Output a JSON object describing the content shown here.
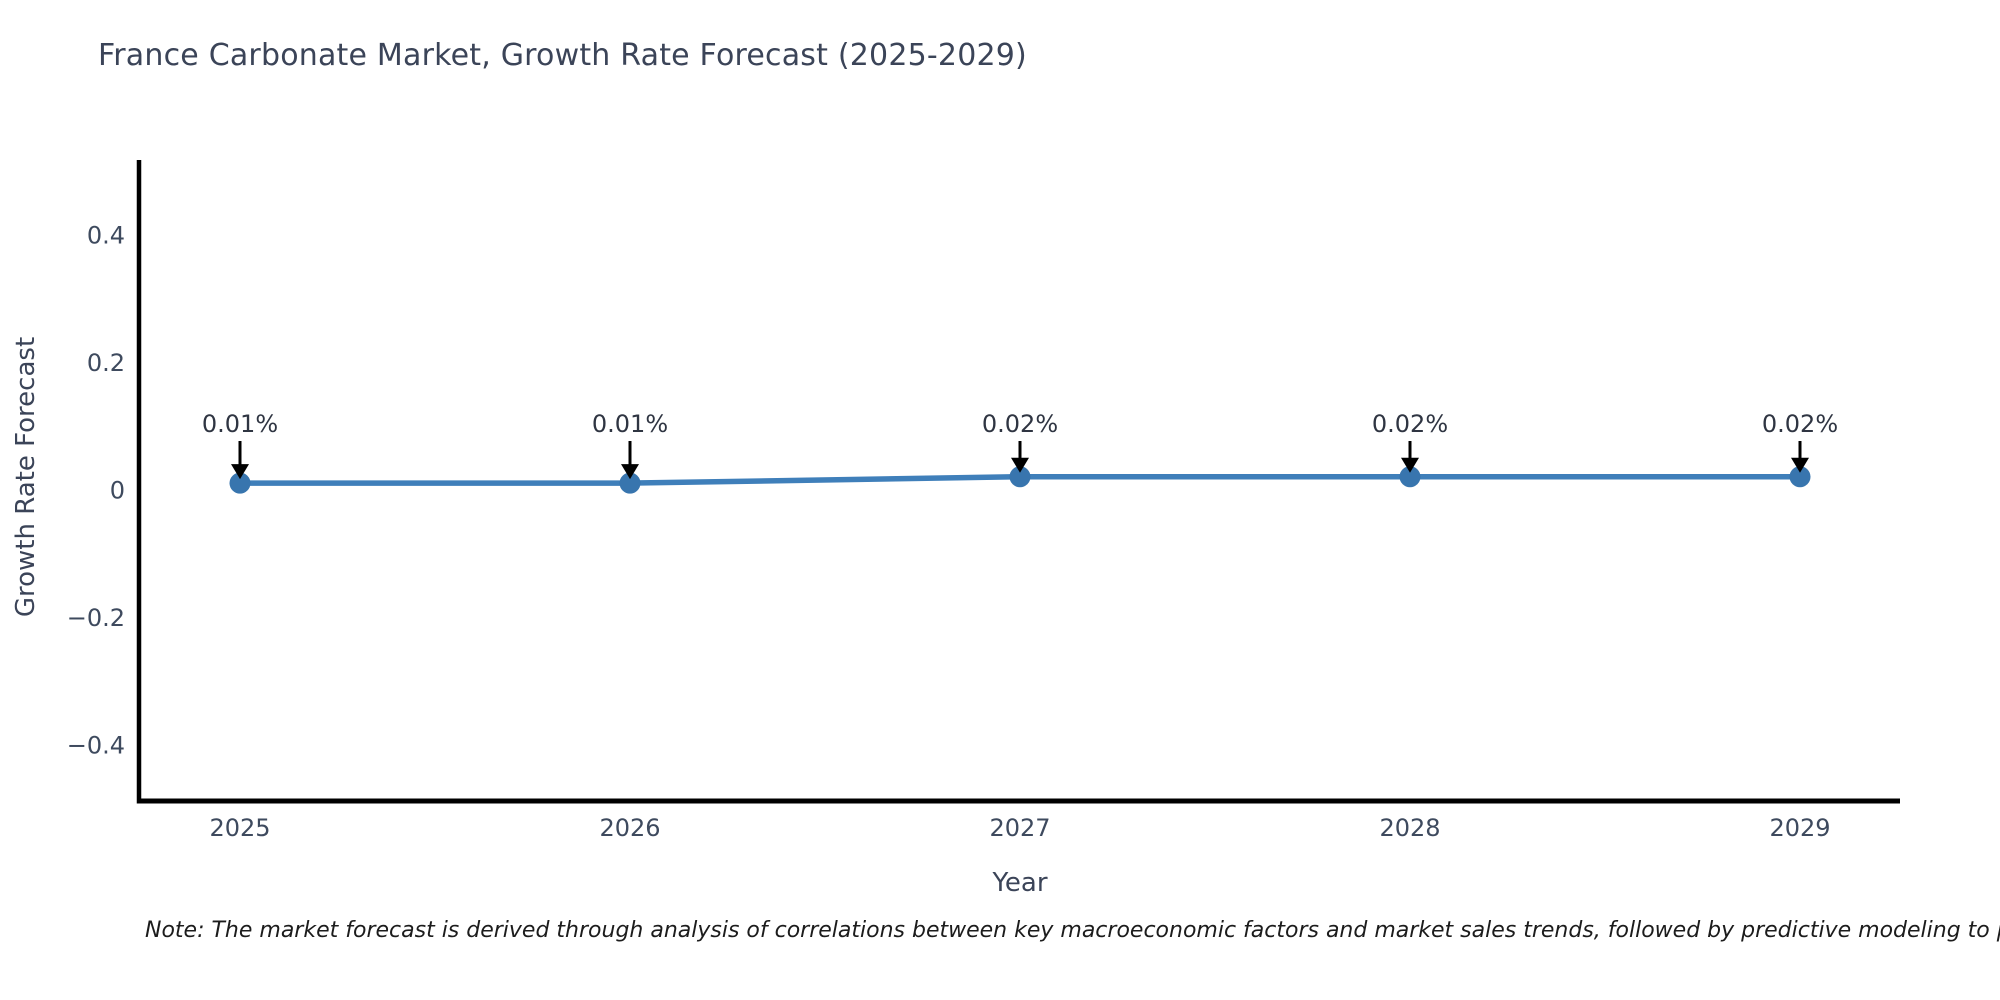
{
  "title": "France Carbonate Market, Growth Rate Forecast (2025-2029)",
  "note": "Note: The market forecast is derived through analysis of correlations between key macroeconomic factors and market sales trends, followed by predictive modeling to project future sal",
  "chart_data": {
    "type": "line",
    "title": "France Carbonate Market, Growth Rate Forecast (2025-2029)",
    "xlabel": "Year",
    "ylabel": "Growth Rate Forecast",
    "x": [
      2025,
      2026,
      2027,
      2028,
      2029
    ],
    "x_tick_labels": [
      "2025",
      "2026",
      "2027",
      "2028",
      "2029"
    ],
    "values": [
      0.01,
      0.01,
      0.02,
      0.02,
      0.02
    ],
    "point_labels": [
      "0.01%",
      "0.01%",
      "0.02%",
      "0.02%",
      "0.02%"
    ],
    "yticks": [
      0.4,
      0.2,
      0,
      -0.2,
      -0.4
    ],
    "ytick_labels": [
      "0.4",
      "0.2",
      "0",
      "−0.2",
      "−0.4"
    ],
    "ylim": [
      -0.49,
      0.52
    ],
    "grid": false,
    "legend": "none",
    "colors": {
      "line": "#3f7fba",
      "marker": "#3875ae",
      "axis": "#000000",
      "tick_text": "#3e4a5e",
      "annotation_text": "#2f3542",
      "annotation_arrow": "#000000"
    }
  }
}
